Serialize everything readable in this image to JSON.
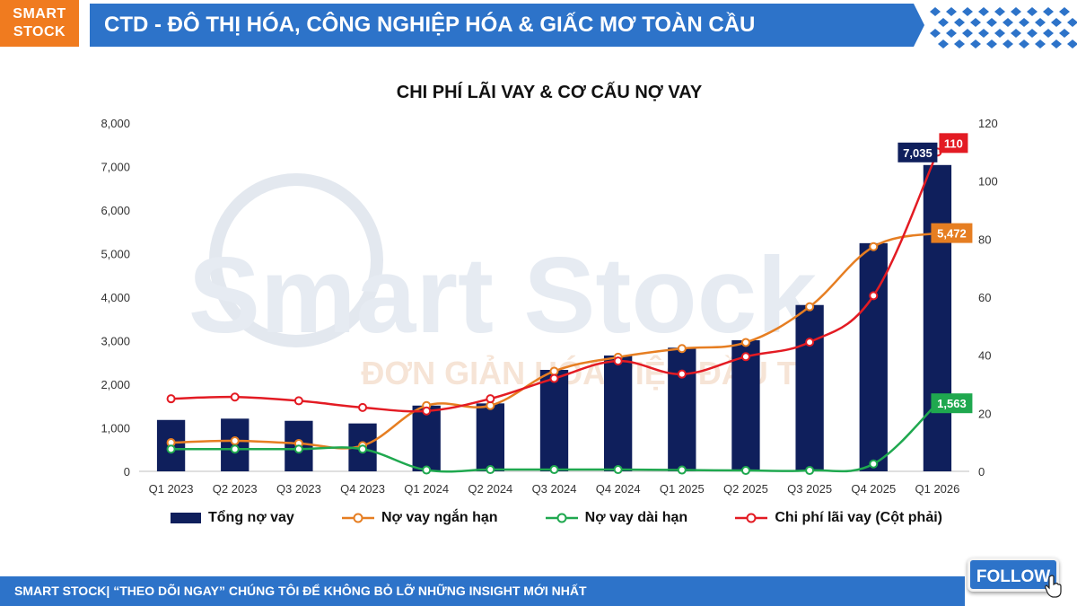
{
  "brand": {
    "line1": "SMART",
    "line2": "STOCK"
  },
  "header": {
    "title": "CTD - ĐÔ THỊ HÓA, CÔNG NGHIỆP HÓA & GIẤC MƠ TOÀN CẦU"
  },
  "watermark": {
    "name": "Smart Stock",
    "slogan": "ĐƠN GIẢN HÓA VIỆC ĐẦU TƯ"
  },
  "footer": {
    "text": "SMART STOCK| “THEO DÕI NGAY” CHÚNG TÔI ĐỂ KHÔNG BỎ LỠ NHỮNG INSIGHT MỚI NHẤT",
    "follow_label": "FOLLOW"
  },
  "colors": {
    "header_blue": "#2d73c9",
    "brand_orange": "#f07b1f",
    "bar": "#0f1f5c",
    "short_term": "#e67e22",
    "long_term": "#1fa84f",
    "interest": "#e31b23"
  },
  "chart_data": {
    "type": "bar",
    "title": "CHI PHÍ LÃI VAY & CƠ CẤU NỢ VAY",
    "categories": [
      "Q1 2023",
      "Q2 2023",
      "Q3 2023",
      "Q4 2023",
      "Q1 2024",
      "Q2 2024",
      "Q3 2024",
      "Q4 2024",
      "Q1 2025",
      "Q2 2025",
      "Q3 2025",
      "Q4 2025",
      "Q1 2026"
    ],
    "ylim": [
      0,
      8000
    ],
    "y_ticks": [
      "0",
      "1,000",
      "2,000",
      "3,000",
      "4,000",
      "5,000",
      "6,000",
      "7,000",
      "8,000"
    ],
    "y2lim": [
      0,
      120
    ],
    "y2_ticks": [
      "0",
      "20",
      "40",
      "60",
      "80",
      "100",
      "120"
    ],
    "grid": false,
    "legend_position": "bottom",
    "series": [
      {
        "name": "Tổng nợ vay",
        "type": "bar",
        "axis": "left",
        "values": [
          1180,
          1210,
          1160,
          1100,
          1510,
          1560,
          2330,
          2660,
          2840,
          3010,
          3820,
          5240,
          7035
        ]
      },
      {
        "name": "Nợ vay ngắn hạn",
        "type": "line",
        "axis": "left",
        "values": [
          660,
          700,
          640,
          590,
          1510,
          1510,
          2300,
          2620,
          2820,
          2960,
          3780,
          5160,
          5472
        ]
      },
      {
        "name": "Nợ vay dài hạn",
        "type": "line",
        "axis": "left",
        "values": [
          510,
          510,
          510,
          510,
          30,
          40,
          40,
          40,
          30,
          20,
          20,
          170,
          1563
        ]
      },
      {
        "name": "Chi phí lãi vay (Cột phải)",
        "type": "line",
        "axis": "right",
        "values": [
          25,
          25.6,
          24.3,
          22,
          20.8,
          25,
          32,
          38,
          33.5,
          39.5,
          44.5,
          60.5,
          110
        ]
      }
    ],
    "data_labels": [
      {
        "series": 0,
        "index": 12,
        "text": "7,035"
      },
      {
        "series": 1,
        "index": 12,
        "text": "5,472"
      },
      {
        "series": 2,
        "index": 12,
        "text": "1,563"
      },
      {
        "series": 3,
        "index": 12,
        "text": "110"
      }
    ]
  }
}
